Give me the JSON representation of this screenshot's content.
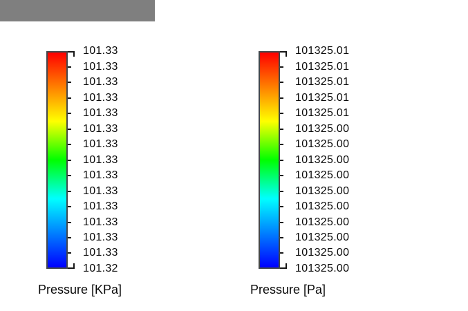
{
  "window": {
    "background": "#ffffff",
    "titlebar_color": "#7f7f7f"
  },
  "chart_data": [
    {
      "type": "colorbar",
      "title": "Pressure [KPa]",
      "units": "KPa",
      "min": 101.32,
      "max": 101.33,
      "orientation": "vertical",
      "tick_labels": [
        "101.33",
        "101.33",
        "101.33",
        "101.33",
        "101.33",
        "101.33",
        "101.33",
        "101.33",
        "101.33",
        "101.33",
        "101.33",
        "101.33",
        "101.33",
        "101.33",
        "101.32"
      ],
      "gradient": [
        {
          "color": "#ff0000",
          "pos": 0
        },
        {
          "color": "#ffff00",
          "pos": 32
        },
        {
          "color": "#00ff00",
          "pos": 50
        },
        {
          "color": "#00ffff",
          "pos": 68
        },
        {
          "color": "#0000ff",
          "pos": 100
        }
      ]
    },
    {
      "type": "colorbar",
      "title": "Pressure [Pa]",
      "units": "Pa",
      "min": 101325.0,
      "max": 101325.01,
      "orientation": "vertical",
      "tick_labels": [
        "101325.01",
        "101325.01",
        "101325.01",
        "101325.01",
        "101325.01",
        "101325.00",
        "101325.00",
        "101325.00",
        "101325.00",
        "101325.00",
        "101325.00",
        "101325.00",
        "101325.00",
        "101325.00",
        "101325.00"
      ],
      "gradient": [
        {
          "color": "#ff0000",
          "pos": 0
        },
        {
          "color": "#ffff00",
          "pos": 32
        },
        {
          "color": "#00ff00",
          "pos": 50
        },
        {
          "color": "#00ffff",
          "pos": 68
        },
        {
          "color": "#0000ff",
          "pos": 100
        }
      ]
    }
  ]
}
